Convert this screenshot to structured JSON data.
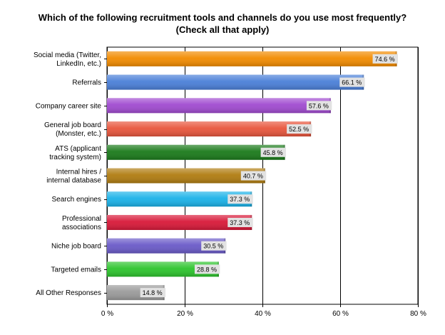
{
  "chart_title": {
    "line1": "Which of the following recruitment tools and channels do you use most frequently?",
    "line2": "(Check all that apply)"
  },
  "chart_data": {
    "type": "bar",
    "orientation": "horizontal",
    "title": "Which of the following recruitment tools and channels do you use most frequently? (Check all that apply)",
    "xlabel": "",
    "ylabel": "",
    "xlim": [
      0,
      80
    ],
    "x_ticks": [
      0,
      20,
      40,
      60,
      80
    ],
    "x_tick_labels": [
      "0 %",
      "20 %",
      "40 %",
      "60 %",
      "80 %"
    ],
    "grid": "vertical",
    "categories": [
      [
        "Social media (Twitter,",
        "LinkedIn, etc.)"
      ],
      [
        "Referrals"
      ],
      [
        "Company career site"
      ],
      [
        "General job board",
        "(Monster, etc.)"
      ],
      [
        "ATS (applicant",
        "tracking system)"
      ],
      [
        "Internal hires /",
        "internal database"
      ],
      [
        "Search engines"
      ],
      [
        "Professional",
        "associations"
      ],
      [
        "Niche job board"
      ],
      [
        "Targeted emails"
      ],
      [
        "All Other Responses"
      ]
    ],
    "values": [
      74.6,
      66.1,
      57.6,
      52.5,
      45.8,
      40.7,
      37.3,
      37.3,
      30.5,
      28.8,
      14.8
    ],
    "value_labels": [
      "74.6 %",
      "66.1 %",
      "57.6 %",
      "52.5 %",
      "45.8 %",
      "40.7 %",
      "37.3 %",
      "37.3 %",
      "30.5 %",
      "28.8 %",
      "14.8 %"
    ],
    "colors": [
      "#f28b00",
      "#4a7fd8",
      "#a04ad0",
      "#e8553c",
      "#1a7a1a",
      "#b07c10",
      "#1ab2e8",
      "#d81838",
      "#6a5ac8",
      "#2cc42c",
      "#9a9a9a"
    ]
  }
}
